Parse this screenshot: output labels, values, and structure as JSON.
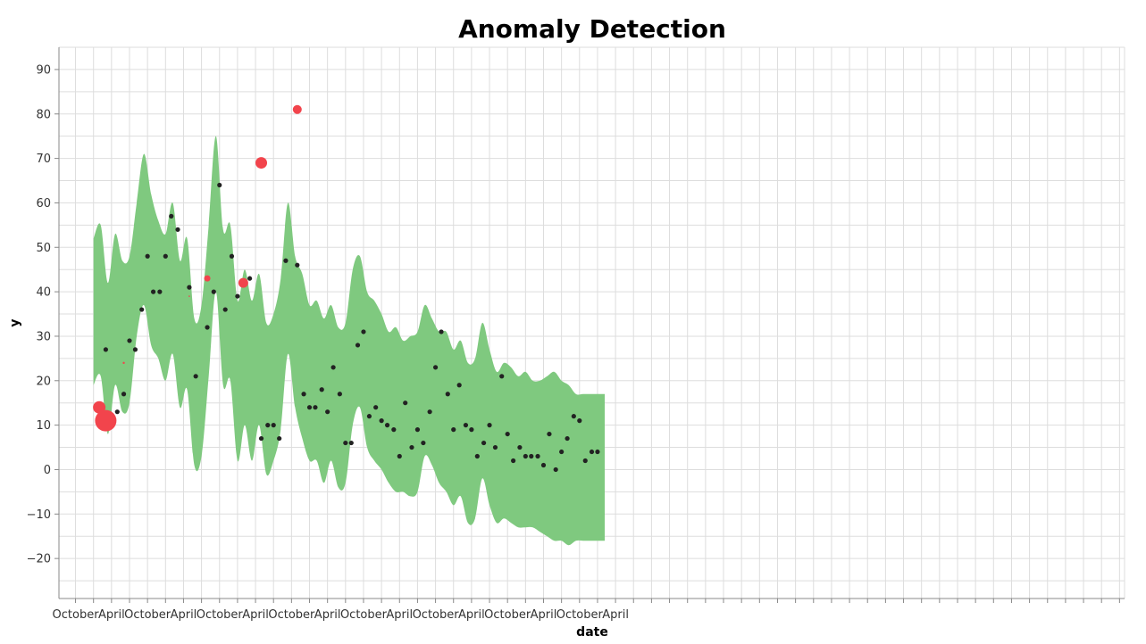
{
  "chart_data": {
    "type": "scatter",
    "title": "Anomaly Detection",
    "xlabel": "date",
    "ylabel": "y",
    "ylim": [
      -29,
      95
    ],
    "yticks": [
      -20,
      -10,
      0,
      10,
      20,
      30,
      40,
      50,
      60,
      70,
      80,
      90
    ],
    "xlim": [
      2008.52,
      2023.32
    ],
    "xticks": [
      {
        "t": 2008.75,
        "label": "October"
      },
      {
        "t": 2009.25,
        "label": "April"
      },
      {
        "t": 2009.75,
        "label": "October"
      },
      {
        "t": 2010.25,
        "label": "April"
      },
      {
        "t": 2010.75,
        "label": "October"
      },
      {
        "t": 2011.25,
        "label": "April"
      },
      {
        "t": 2011.75,
        "label": "October"
      },
      {
        "t": 2012.25,
        "label": "April"
      },
      {
        "t": 2012.75,
        "label": "October"
      },
      {
        "t": 2013.25,
        "label": "April"
      },
      {
        "t": 2013.75,
        "label": "October"
      },
      {
        "t": 2014.25,
        "label": "April"
      },
      {
        "t": 2014.75,
        "label": "October"
      },
      {
        "t": 2015.25,
        "label": "April"
      },
      {
        "t": 2015.75,
        "label": "October"
      },
      {
        "t": 2016.25,
        "label": "April"
      }
    ],
    "minor_grid_step": 0.25,
    "colors": {
      "band": "#7fc97f",
      "normal": "#222222",
      "anomaly": "#f2444c"
    },
    "band": {
      "name": "prediction interval",
      "x": [
        2009.0,
        2009.1,
        2009.2,
        2009.3,
        2009.4,
        2009.5,
        2009.6,
        2009.7,
        2009.8,
        2009.9,
        2010.0,
        2010.1,
        2010.2,
        2010.3,
        2010.4,
        2010.5,
        2010.6,
        2010.7,
        2010.8,
        2010.9,
        2011.0,
        2011.1,
        2011.2,
        2011.3,
        2011.4,
        2011.5,
        2011.6,
        2011.7,
        2011.8,
        2011.9,
        2012.0,
        2012.1,
        2012.2,
        2012.3,
        2012.4,
        2012.5,
        2012.6,
        2012.7,
        2012.8,
        2012.9,
        2013.0,
        2013.1,
        2013.2,
        2013.3,
        2013.4,
        2013.5,
        2013.6,
        2013.7,
        2013.8,
        2013.9,
        2014.0,
        2014.1,
        2014.2,
        2014.3,
        2014.4,
        2014.5,
        2014.6,
        2014.7,
        2014.8,
        2014.9,
        2015.0,
        2015.1,
        2015.2,
        2015.3,
        2015.4,
        2015.5,
        2015.6,
        2015.7,
        2015.8,
        2015.9,
        2016.0,
        2016.1
      ],
      "upper": [
        52,
        55,
        42,
        53,
        47,
        48,
        60,
        71,
        62,
        56,
        53,
        60,
        47,
        52,
        34,
        37,
        55,
        75,
        54,
        55,
        38,
        45,
        38,
        44,
        33,
        35,
        43,
        60,
        48,
        44,
        37,
        38,
        34,
        37,
        32,
        33,
        45,
        48,
        40,
        38,
        35,
        31,
        32,
        29,
        30,
        31,
        37,
        34,
        31,
        31,
        27,
        29,
        24,
        25,
        33,
        27,
        22,
        24,
        23,
        21,
        22,
        20,
        20,
        21,
        22,
        20,
        19,
        17,
        17,
        17,
        17,
        17
      ],
      "lower": [
        19,
        21,
        8,
        19,
        13,
        15,
        30,
        37,
        28,
        25,
        20,
        26,
        14,
        18,
        1,
        3,
        21,
        40,
        19,
        20,
        2,
        10,
        2,
        10,
        -1,
        2,
        9,
        26,
        14,
        7,
        2,
        2,
        -3,
        2,
        -4,
        -3,
        10,
        14,
        5,
        2,
        0,
        -3,
        -5,
        -5,
        -6,
        -5,
        3,
        1,
        -3,
        -5,
        -8,
        -6,
        -12,
        -11,
        -2,
        -8,
        -12,
        -11,
        -12,
        -13,
        -13,
        -13,
        -14,
        -15,
        -16,
        -16,
        -17,
        -16,
        -16,
        -16,
        -16,
        -16
      ]
    },
    "normal_points": {
      "name": "normal",
      "x": [
        2009.17,
        2009.33,
        2009.42,
        2009.5,
        2009.58,
        2009.67,
        2009.75,
        2009.83,
        2009.92,
        2010.0,
        2010.08,
        2010.17,
        2010.33,
        2010.42,
        2010.58,
        2010.67,
        2010.75,
        2010.83,
        2010.92,
        2011.0,
        2011.17,
        2011.33,
        2011.42,
        2011.5,
        2011.58,
        2011.67,
        2011.83,
        2011.92,
        2012.0,
        2012.08,
        2012.17,
        2012.25,
        2012.33,
        2012.42,
        2012.5,
        2012.58,
        2012.67,
        2012.75,
        2012.83,
        2012.92,
        2013.0,
        2013.08,
        2013.17,
        2013.25,
        2013.33,
        2013.42,
        2013.5,
        2013.58,
        2013.67,
        2013.75,
        2013.83,
        2013.92,
        2014.0,
        2014.08,
        2014.17,
        2014.25,
        2014.33,
        2014.42,
        2014.5,
        2014.58,
        2014.67,
        2014.75,
        2014.83,
        2014.92,
        2015.0,
        2015.08,
        2015.17,
        2015.25,
        2015.33,
        2015.42,
        2015.5,
        2015.58,
        2015.67,
        2015.75,
        2015.83,
        2015.92,
        2016.0
      ],
      "y": [
        27,
        13,
        17,
        29,
        27,
        36,
        48,
        40,
        40,
        48,
        57,
        54,
        41,
        21,
        32,
        40,
        64,
        36,
        48,
        39,
        43,
        7,
        10,
        10,
        7,
        47,
        46,
        17,
        14,
        14,
        18,
        13,
        23,
        17,
        6,
        6,
        28,
        31,
        12,
        14,
        11,
        10,
        9,
        3,
        15,
        5,
        9,
        6,
        13,
        23,
        31,
        17,
        9,
        19,
        10,
        9,
        3,
        6,
        10,
        5,
        21,
        8,
        2,
        5,
        3,
        3,
        3,
        1,
        8,
        0,
        4,
        7,
        12,
        11,
        2,
        4,
        4
      ]
    },
    "anomaly_points": {
      "name": "anomaly",
      "x": [
        2009.08,
        2009.17,
        2009.42,
        2010.33,
        2010.58,
        2011.08,
        2011.33,
        2011.83
      ],
      "y": [
        14,
        11,
        24,
        39,
        43,
        42,
        69,
        81
      ],
      "sizes": [
        7,
        12,
        1.2,
        0.8,
        3.5,
        5.5,
        6.5,
        5
      ]
    }
  }
}
